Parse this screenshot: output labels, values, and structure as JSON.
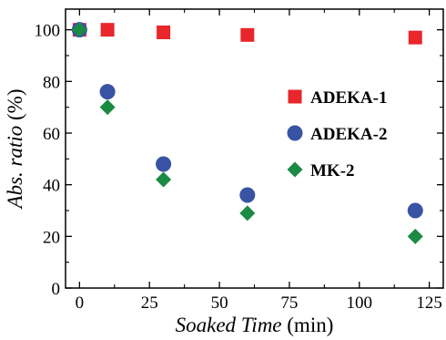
{
  "chart_data": {
    "type": "scatter",
    "xlabel": {
      "main": "Soaked Time",
      "unit": " (min)"
    },
    "ylabel": {
      "main": "Abs. ratio",
      "unit": " (%)"
    },
    "xlim": [
      -5,
      130
    ],
    "ylim": [
      0,
      108
    ],
    "xticks": [
      0,
      25,
      50,
      75,
      100,
      125
    ],
    "yticks": [
      0,
      20,
      40,
      60,
      80,
      100
    ],
    "grid": false,
    "legend_position": "right-center",
    "series": [
      {
        "name": "ADEKA-1",
        "marker": "square",
        "color": "#e8262b",
        "x": [
          0,
          10,
          30,
          60,
          120
        ],
        "y": [
          100,
          100,
          99,
          98,
          97
        ]
      },
      {
        "name": "ADEKA-2",
        "marker": "circle",
        "color": "#3852a4",
        "x": [
          0,
          10,
          30,
          60,
          120
        ],
        "y": [
          100,
          76,
          48,
          36,
          30
        ]
      },
      {
        "name": "MK-2",
        "marker": "diamond",
        "color": "#1b8a43",
        "x": [
          0,
          10,
          30,
          60,
          120
        ],
        "y": [
          100,
          70,
          42,
          29,
          20
        ]
      }
    ]
  }
}
